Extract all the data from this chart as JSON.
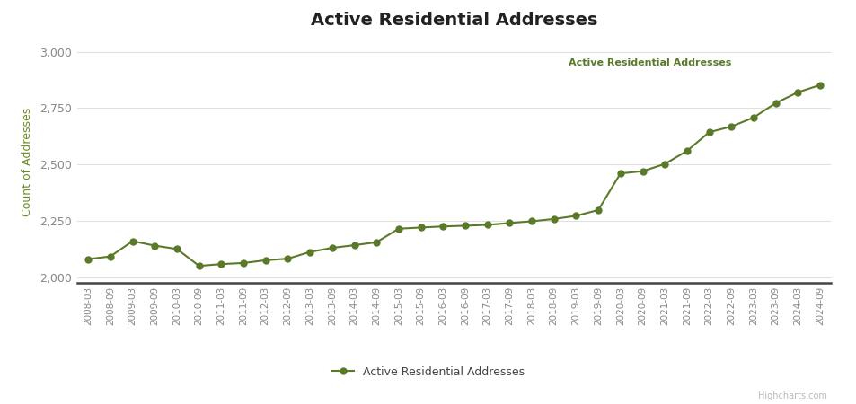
{
  "title": "Active Residential Addresses",
  "ylabel": "Count of Addresses",
  "series_label": "Active Residential Addresses",
  "line_color": "#5a7a29",
  "marker_color": "#5a7a29",
  "bg_color": "#ffffff",
  "plot_bg_color": "#ffffff",
  "outer_bg_color": "#f0f0f0",
  "grid_color": "#e0e0e0",
  "ylabel_color": "#6b8e23",
  "tick_color": "#888888",
  "annotation_color": "#5a7a29",
  "highcharts_text": "Highcharts.com",
  "ylim": [
    1975,
    3050
  ],
  "yticks": [
    2000,
    2250,
    2500,
    2750,
    3000
  ],
  "dates": [
    "2008-03",
    "2008-09",
    "2009-03",
    "2009-09",
    "2010-03",
    "2010-09",
    "2011-03",
    "2011-09",
    "2012-03",
    "2012-09",
    "2013-03",
    "2013-09",
    "2014-03",
    "2014-09",
    "2015-03",
    "2015-09",
    "2016-03",
    "2016-09",
    "2017-03",
    "2017-09",
    "2018-03",
    "2018-09",
    "2019-03",
    "2019-09",
    "2020-03",
    "2020-09",
    "2021-03",
    "2021-09",
    "2022-03",
    "2022-09",
    "2023-03",
    "2023-09",
    "2024-03",
    "2024-09"
  ],
  "values": [
    2080,
    2092,
    2160,
    2140,
    2125,
    2050,
    2058,
    2063,
    2075,
    2082,
    2112,
    2130,
    2142,
    2155,
    2215,
    2220,
    2225,
    2228,
    2232,
    2240,
    2248,
    2258,
    2272,
    2298,
    2460,
    2470,
    2502,
    2560,
    2643,
    2668,
    2708,
    2772,
    2820,
    2852
  ]
}
